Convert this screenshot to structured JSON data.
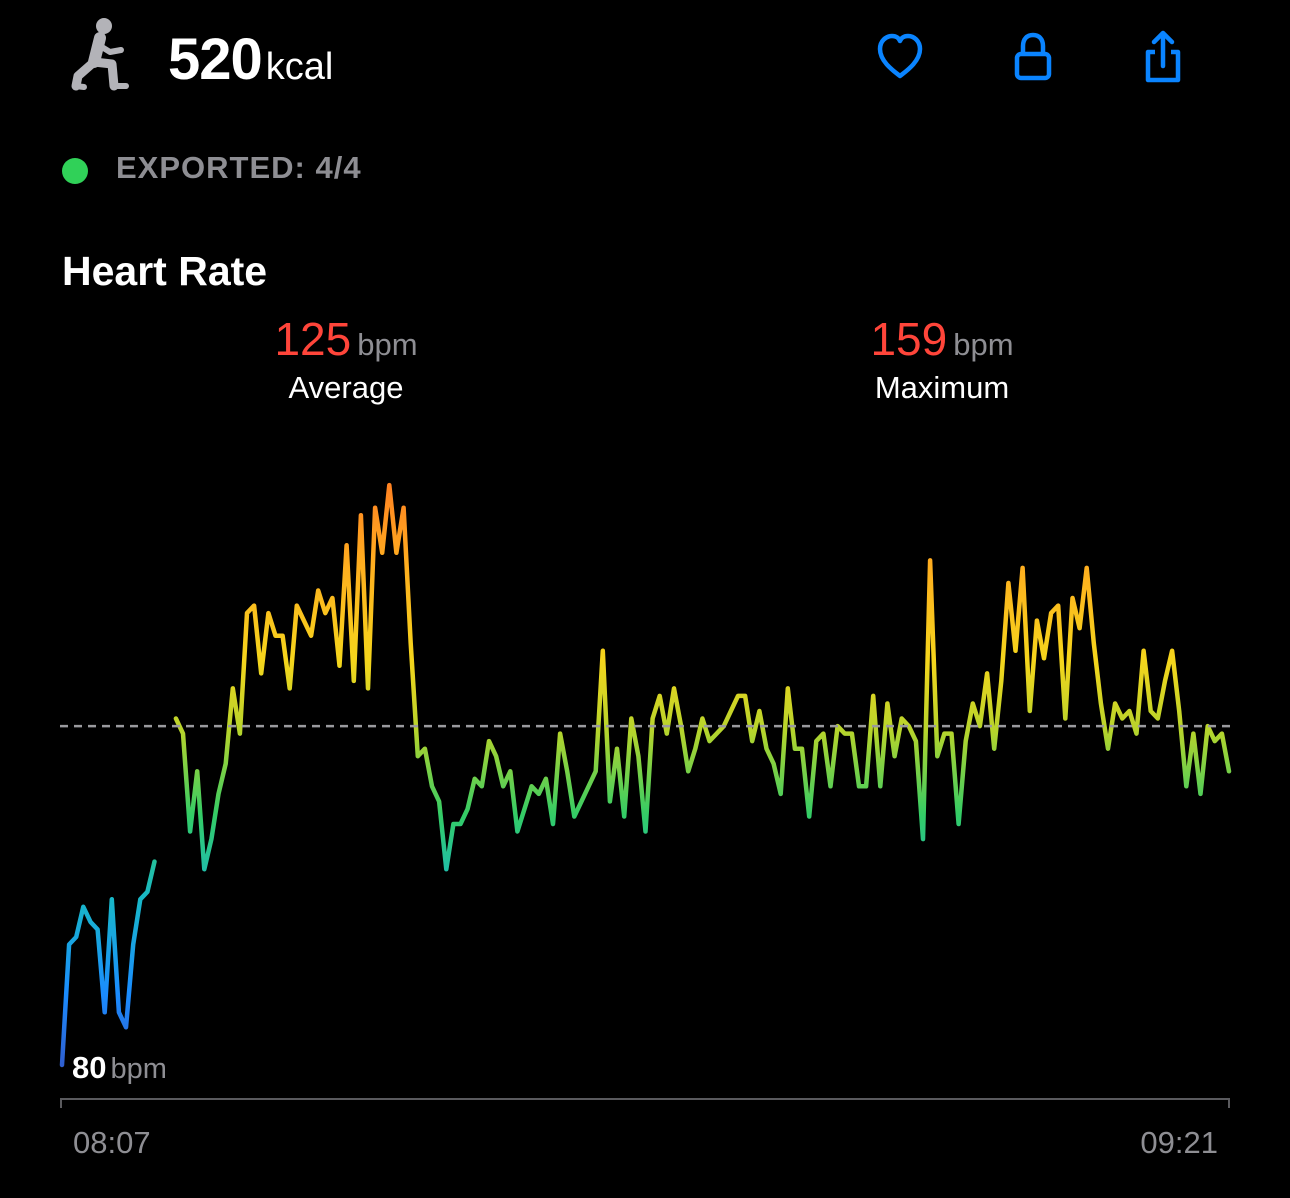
{
  "header": {
    "workout_icon": "lunge-person-icon",
    "calories_value": "520",
    "calories_unit": "kcal",
    "actions": [
      {
        "name": "heart-button",
        "icon": "heart-icon"
      },
      {
        "name": "lock-button",
        "icon": "lock-icon"
      },
      {
        "name": "share-button",
        "icon": "share-icon"
      }
    ],
    "accent_color": "#0a84ff"
  },
  "export": {
    "status_text": "EXPORTED: 4/4",
    "dot_color": "#30d158"
  },
  "heart_rate": {
    "title": "Heart Rate",
    "average": {
      "value": "125",
      "unit": "bpm",
      "label": "Average"
    },
    "maximum": {
      "value": "159",
      "unit": "bpm",
      "label": "Maximum"
    },
    "minimum": {
      "value": "80",
      "unit": "bpm"
    },
    "value_color": "#ff453a"
  },
  "chart_data": {
    "type": "line",
    "x_start_label": "08:07",
    "x_end_label": "09:21",
    "unit": "bpm",
    "reference_line": {
      "value": 125,
      "style": "dashed",
      "label": "Average"
    },
    "ylim": [
      80,
      159
    ],
    "grid": false,
    "segments": [
      {
        "values": [
          80,
          96,
          97,
          101,
          99,
          98,
          87,
          102,
          87,
          85,
          96,
          102,
          103,
          107
        ]
      },
      {
        "values": [
          126,
          124,
          111,
          119,
          106,
          110,
          116,
          120,
          130,
          124,
          140,
          141,
          132,
          140,
          137,
          137,
          130,
          141,
          139,
          137,
          143,
          140,
          142,
          133,
          149,
          131,
          153,
          130,
          154,
          148,
          157,
          148,
          154,
          136,
          121,
          122,
          117,
          115,
          106,
          112,
          112,
          114,
          118,
          117,
          123,
          121,
          117,
          119,
          111,
          114,
          117,
          116,
          118,
          112,
          124,
          119,
          113,
          115,
          117,
          119,
          135,
          115,
          122,
          113,
          126,
          121,
          111,
          126,
          129,
          124,
          130,
          125,
          119,
          122,
          126,
          123,
          124,
          125,
          127,
          129,
          129,
          123,
          127,
          122,
          120,
          116,
          130,
          122,
          122,
          113,
          123,
          124,
          117,
          125,
          124,
          124,
          117,
          117,
          129,
          117,
          128,
          121,
          126,
          125,
          123,
          110,
          147,
          121,
          124,
          124,
          112,
          123,
          128,
          125,
          132,
          122,
          131,
          144,
          135,
          146,
          127,
          139,
          134,
          140,
          141,
          126,
          142,
          138,
          146,
          136,
          128,
          122,
          128,
          126,
          127,
          124,
          135,
          127,
          126,
          131,
          135,
          127,
          117,
          124,
          116,
          125,
          123,
          124,
          119
        ]
      }
    ]
  }
}
